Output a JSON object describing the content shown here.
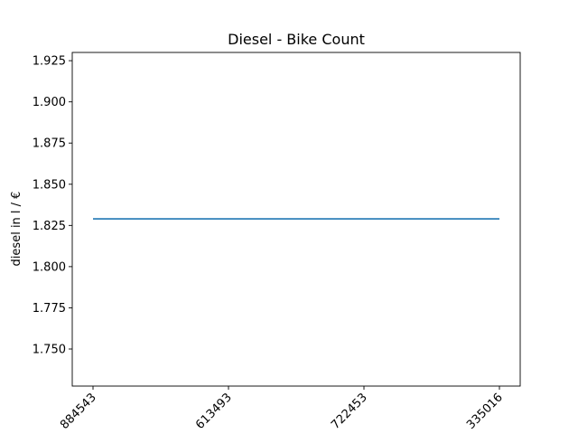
{
  "chart_data": {
    "type": "line",
    "title": "Diesel - Bike Count",
    "xlabel": "",
    "ylabel": "diesel in l / €",
    "x": [
      "884543",
      "613493",
      "722453",
      "335016"
    ],
    "series": [
      {
        "values": [
          1.829,
          1.829,
          1.829,
          1.829
        ]
      }
    ],
    "ylim": [
      1.7275,
      1.93
    ],
    "yticks": [
      "1.750",
      "1.775",
      "1.800",
      "1.825",
      "1.850",
      "1.875",
      "1.900",
      "1.925"
    ],
    "grid": false,
    "line_color": "#1f77b4"
  }
}
